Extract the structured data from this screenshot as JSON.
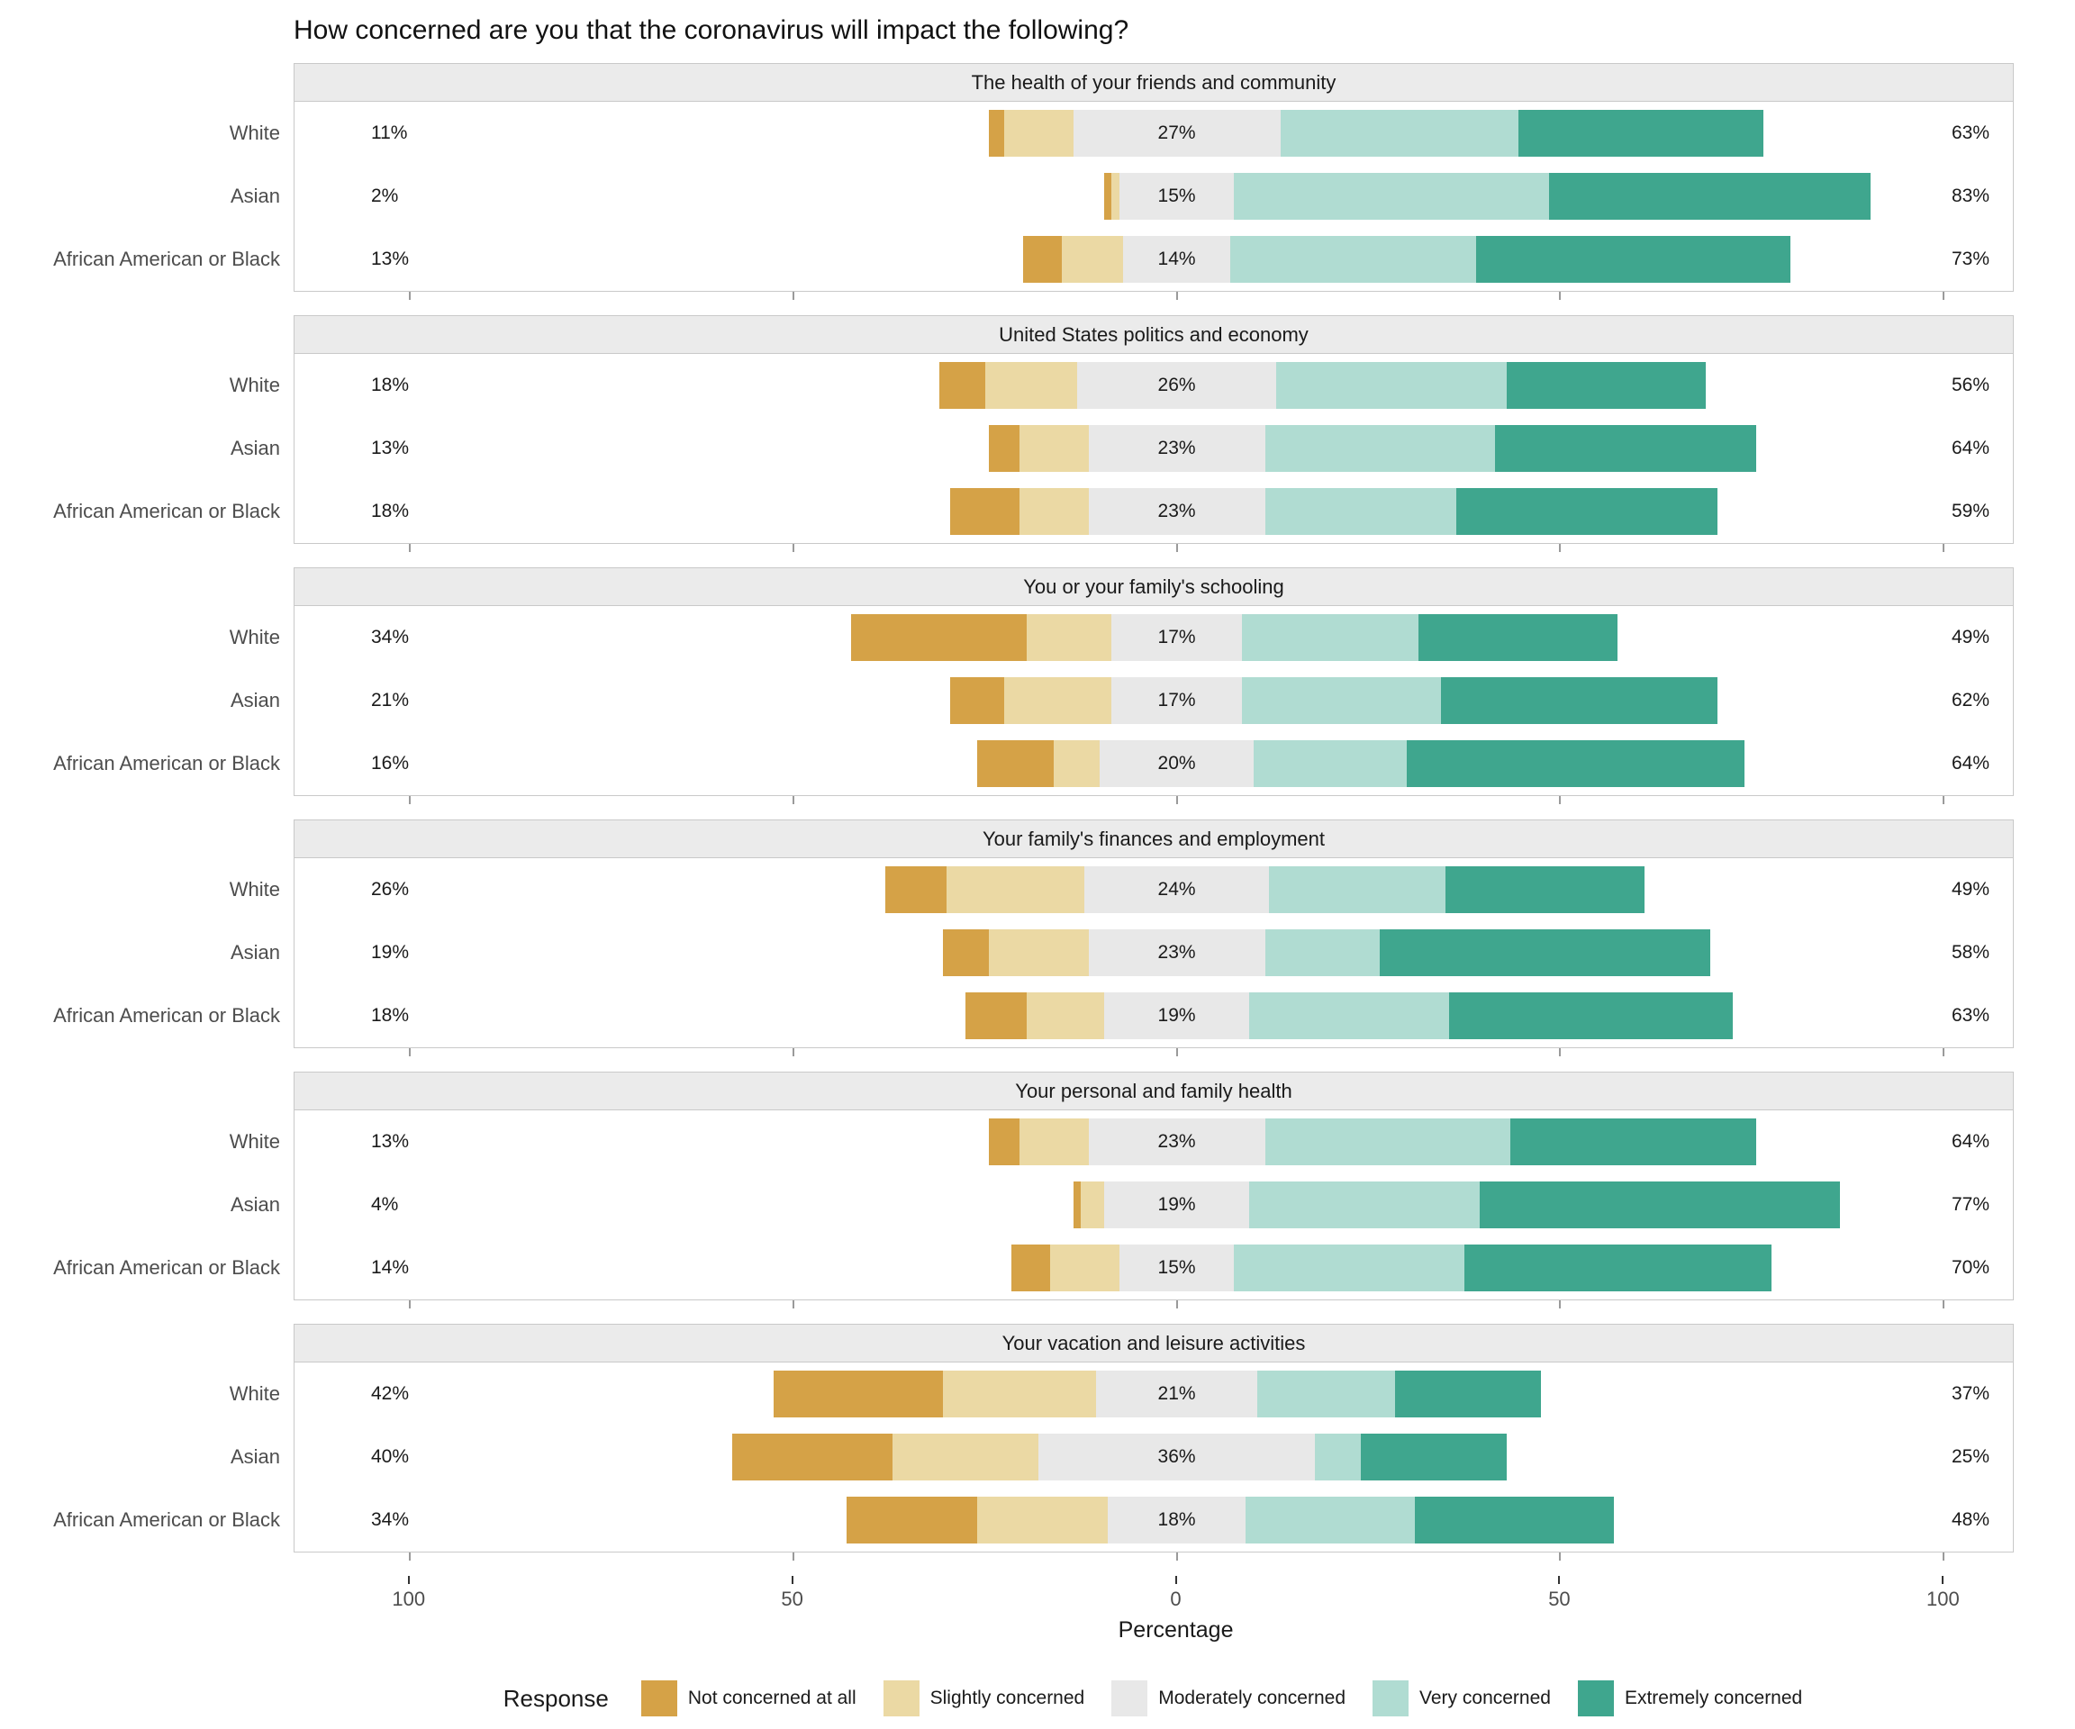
{
  "title": "How concerned are you that the coronavirus will impact the following?",
  "axis": {
    "label": "Percentage",
    "tick_labels": [
      "100",
      "50",
      "0",
      "50",
      "100"
    ],
    "tick_values": [
      -100,
      -50,
      0,
      50,
      100
    ],
    "domain": [
      -115,
      109
    ]
  },
  "legend": {
    "title": "Response",
    "items": [
      {
        "key": "not",
        "label": "Not concerned at all",
        "color": "#D5A247"
      },
      {
        "key": "slightly",
        "label": "Slightly concerned",
        "color": "#EBD9A4"
      },
      {
        "key": "moderately",
        "label": "Moderately concerned",
        "color": "#E8E8E8"
      },
      {
        "key": "very",
        "label": "Very concerned",
        "color": "#B0DCD2"
      },
      {
        "key": "extremely",
        "label": "Extremely concerned",
        "color": "#3FA68E"
      }
    ]
  },
  "chart_data": {
    "type": "bar",
    "variant": "diverging stacked Likert bars centered on the Moderately concerned category",
    "legend_position": "bottom",
    "groups": [
      "White",
      "Asian",
      "African American or Black"
    ],
    "response_levels": [
      "Not concerned at all",
      "Slightly concerned",
      "Moderately concerned",
      "Very concerned",
      "Extremely concerned"
    ],
    "panels": [
      {
        "title": "The health of your friends and community",
        "rows": [
          {
            "group": "White",
            "labels": {
              "left": "11%",
              "center": "27%",
              "right": "63%"
            },
            "values": {
              "not": 2,
              "slightly": 9,
              "moderately": 27,
              "very": 31,
              "extremely": 32
            }
          },
          {
            "group": "Asian",
            "labels": {
              "left": "2%",
              "center": "15%",
              "right": "83%"
            },
            "values": {
              "not": 1,
              "slightly": 1,
              "moderately": 15,
              "very": 41,
              "extremely": 42
            }
          },
          {
            "group": "African American or Black",
            "labels": {
              "left": "13%",
              "center": "14%",
              "right": "73%"
            },
            "values": {
              "not": 5,
              "slightly": 8,
              "moderately": 14,
              "very": 32,
              "extremely": 41
            }
          }
        ]
      },
      {
        "title": "United States politics and economy",
        "rows": [
          {
            "group": "White",
            "labels": {
              "left": "18%",
              "center": "26%",
              "right": "56%"
            },
            "values": {
              "not": 6,
              "slightly": 12,
              "moderately": 26,
              "very": 30,
              "extremely": 26
            }
          },
          {
            "group": "Asian",
            "labels": {
              "left": "13%",
              "center": "23%",
              "right": "64%"
            },
            "values": {
              "not": 4,
              "slightly": 9,
              "moderately": 23,
              "very": 30,
              "extremely": 34
            }
          },
          {
            "group": "African American or Black",
            "labels": {
              "left": "18%",
              "center": "23%",
              "right": "59%"
            },
            "values": {
              "not": 9,
              "slightly": 9,
              "moderately": 23,
              "very": 25,
              "extremely": 34
            }
          }
        ]
      },
      {
        "title": "You or your family's schooling",
        "rows": [
          {
            "group": "White",
            "labels": {
              "left": "34%",
              "center": "17%",
              "right": "49%"
            },
            "values": {
              "not": 23,
              "slightly": 11,
              "moderately": 17,
              "very": 23,
              "extremely": 26
            }
          },
          {
            "group": "Asian",
            "labels": {
              "left": "21%",
              "center": "17%",
              "right": "62%"
            },
            "values": {
              "not": 7,
              "slightly": 14,
              "moderately": 17,
              "very": 26,
              "extremely": 36
            }
          },
          {
            "group": "African American or Black",
            "labels": {
              "left": "16%",
              "center": "20%",
              "right": "64%"
            },
            "values": {
              "not": 10,
              "slightly": 6,
              "moderately": 20,
              "very": 20,
              "extremely": 44
            }
          }
        ]
      },
      {
        "title": "Your family's finances and employment",
        "rows": [
          {
            "group": "White",
            "labels": {
              "left": "26%",
              "center": "24%",
              "right": "49%"
            },
            "values": {
              "not": 8,
              "slightly": 18,
              "moderately": 24,
              "very": 23,
              "extremely": 26
            }
          },
          {
            "group": "Asian",
            "labels": {
              "left": "19%",
              "center": "23%",
              "right": "58%"
            },
            "values": {
              "not": 6,
              "slightly": 13,
              "moderately": 23,
              "very": 15,
              "extremely": 43
            }
          },
          {
            "group": "African American or Black",
            "labels": {
              "left": "18%",
              "center": "19%",
              "right": "63%"
            },
            "values": {
              "not": 8,
              "slightly": 10,
              "moderately": 19,
              "very": 26,
              "extremely": 37
            }
          }
        ]
      },
      {
        "title": "Your personal and family health",
        "rows": [
          {
            "group": "White",
            "labels": {
              "left": "13%",
              "center": "23%",
              "right": "64%"
            },
            "values": {
              "not": 4,
              "slightly": 9,
              "moderately": 23,
              "very": 32,
              "extremely": 32
            }
          },
          {
            "group": "Asian",
            "labels": {
              "left": "4%",
              "center": "19%",
              "right": "77%"
            },
            "values": {
              "not": 1,
              "slightly": 3,
              "moderately": 19,
              "very": 30,
              "extremely": 47
            }
          },
          {
            "group": "African American or Black",
            "labels": {
              "left": "14%",
              "center": "15%",
              "right": "70%"
            },
            "values": {
              "not": 5,
              "slightly": 9,
              "moderately": 15,
              "very": 30,
              "extremely": 40
            }
          }
        ]
      },
      {
        "title": "Your vacation and leisure activities",
        "rows": [
          {
            "group": "White",
            "labels": {
              "left": "42%",
              "center": "21%",
              "right": "37%"
            },
            "values": {
              "not": 22,
              "slightly": 20,
              "moderately": 21,
              "very": 18,
              "extremely": 19
            }
          },
          {
            "group": "Asian",
            "labels": {
              "left": "40%",
              "center": "36%",
              "right": "25%"
            },
            "values": {
              "not": 21,
              "slightly": 19,
              "moderately": 36,
              "very": 6,
              "extremely": 19
            }
          },
          {
            "group": "African American or Black",
            "labels": {
              "left": "34%",
              "center": "18%",
              "right": "48%"
            },
            "values": {
              "not": 17,
              "slightly": 17,
              "moderately": 18,
              "very": 22,
              "extremely": 26
            }
          }
        ]
      }
    ]
  }
}
